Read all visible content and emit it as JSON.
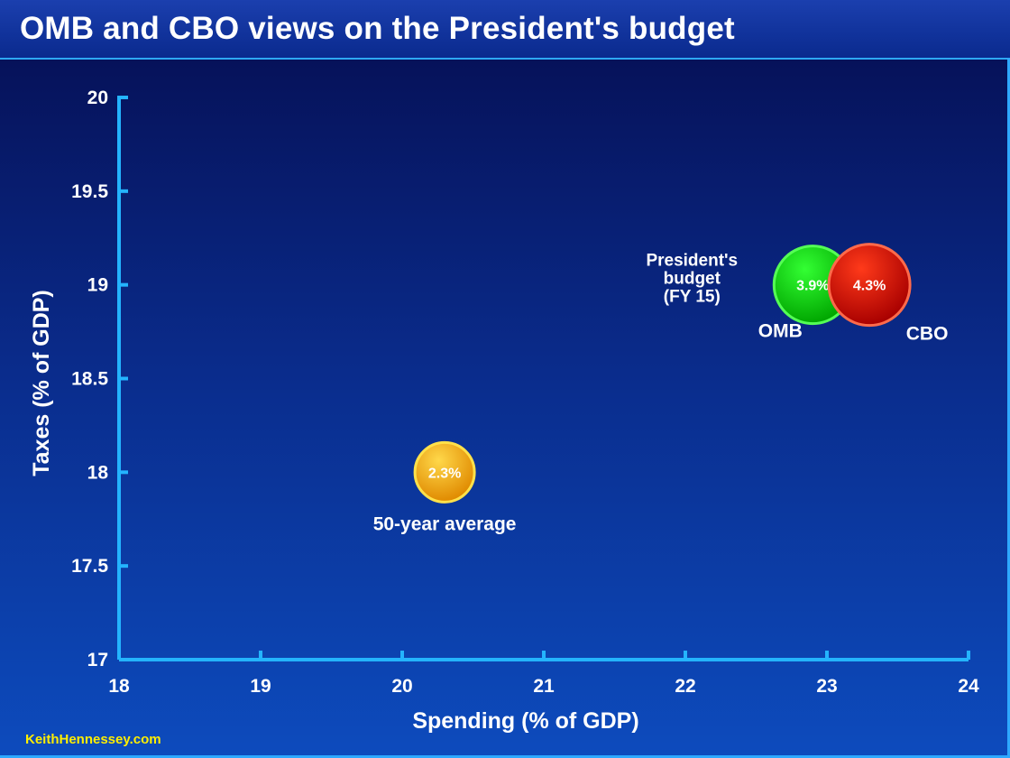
{
  "header": {
    "title": "OMB and CBO views on the President's budget"
  },
  "footer": {
    "credit": "KeithHennessey.com"
  },
  "chart_data": {
    "type": "scatter",
    "xlabel": "Spending (% of GDP)",
    "ylabel": "Taxes (% of GDP)",
    "xlim": [
      18,
      24
    ],
    "ylim": [
      17,
      20
    ],
    "xticks": [
      "18",
      "19",
      "20",
      "21",
      "22",
      "23",
      "24"
    ],
    "yticks": [
      "17",
      "17.5",
      "18",
      "18.5",
      "19",
      "19.5",
      "20"
    ],
    "grid": false,
    "points": [
      {
        "x": 20.3,
        "y": 18.0,
        "value": "2.3%",
        "label": "50-year average",
        "color": "#f5a800"
      },
      {
        "x": 22.9,
        "y": 19.0,
        "value": "3.9%",
        "label": "OMB",
        "color": "#11cc11"
      },
      {
        "x": 23.3,
        "y": 19.0,
        "value": "4.3%",
        "label": "CBO",
        "color": "#dd1100"
      }
    ],
    "annotation": [
      "President's",
      "budget",
      "(FY 15)"
    ]
  }
}
